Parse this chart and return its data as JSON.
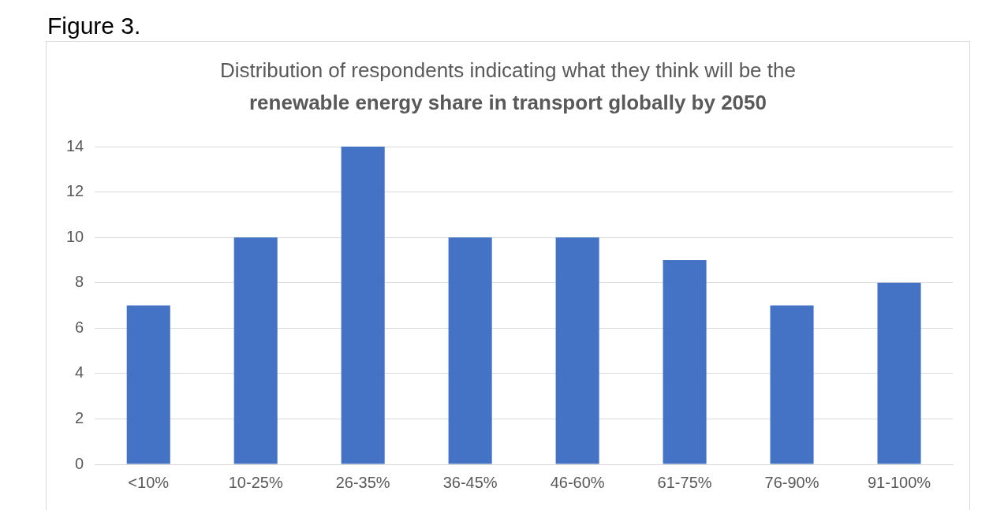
{
  "chart_data": {
    "type": "bar",
    "title": "Distribution of respondents indicating what they think will be the",
    "subtitle": "renewable energy share in transport globally by 2050",
    "annotations": [
      "Figure 3."
    ],
    "categories": [
      "<10%",
      "10-25%",
      "26-35%",
      "36-45%",
      "46-60%",
      "61-75%",
      "76-90%",
      "91-100%"
    ],
    "values": [
      7,
      10,
      14,
      10,
      10,
      9,
      7,
      8
    ],
    "color": "#4472c4",
    "ylim": [
      0,
      14
    ],
    "yticks": [
      0,
      2,
      4,
      6,
      8,
      10,
      12,
      14
    ],
    "grid": "y",
    "legend": false
  }
}
